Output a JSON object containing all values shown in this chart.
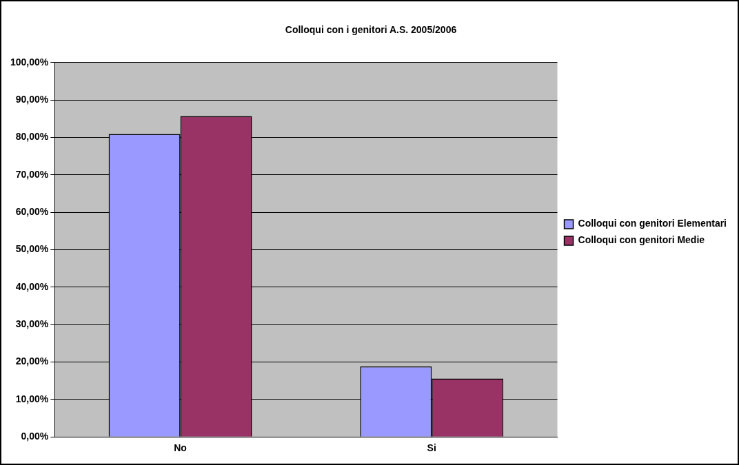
{
  "chart_data": {
    "type": "bar",
    "title": "Colloqui con i genitori A.S. 2005/2006",
    "categories": [
      "No",
      "Si"
    ],
    "series": [
      {
        "name": "Colloqui con genitori Elementari",
        "color": "#9999ff",
        "values": [
          80.9,
          18.8
        ]
      },
      {
        "name": "Colloqui con genitori Medie",
        "color": "#993366",
        "values": [
          85.7,
          15.6
        ]
      }
    ],
    "ylim": [
      0,
      100
    ],
    "yticks": [
      {
        "value": 0,
        "label": "0,00%"
      },
      {
        "value": 10,
        "label": "10,00%"
      },
      {
        "value": 20,
        "label": "20,00%"
      },
      {
        "value": 30,
        "label": "30,00%"
      },
      {
        "value": 40,
        "label": "40,00%"
      },
      {
        "value": 50,
        "label": "50,00%"
      },
      {
        "value": 60,
        "label": "60,00%"
      },
      {
        "value": 70,
        "label": "70,00%"
      },
      {
        "value": 80,
        "label": "80,00%"
      },
      {
        "value": 90,
        "label": "90,00%"
      },
      {
        "value": 100,
        "label": "100,00%"
      }
    ],
    "grid": "y",
    "legend": "right"
  }
}
